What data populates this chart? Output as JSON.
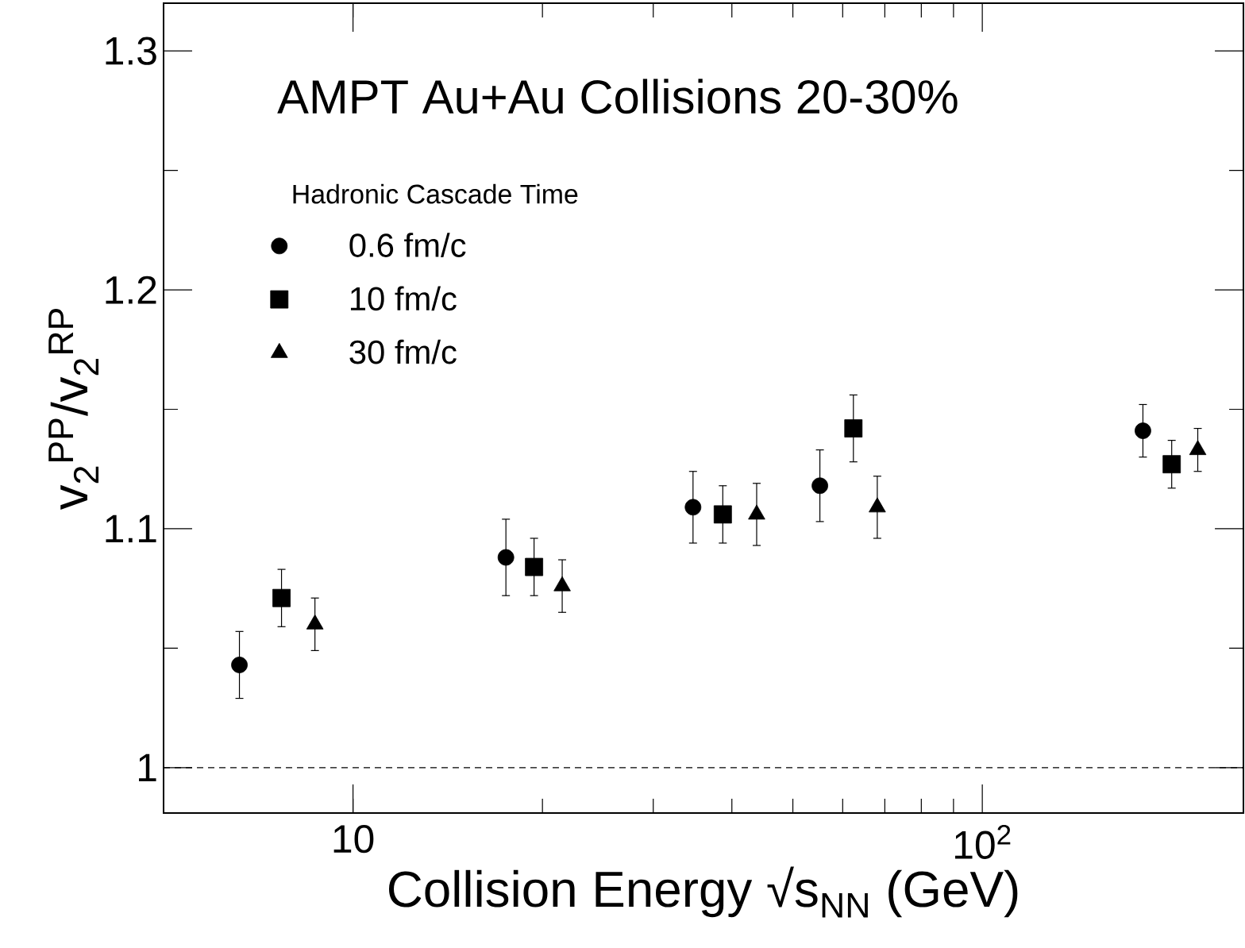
{
  "chart_data": {
    "type": "scatter",
    "title": "AMPT Au+Au Collisions 20-30%",
    "xlabel": "Collision Energy √s$_{NN}$ (GeV)",
    "ylabel": "v$_{2}$$^{PP}$/v$_{2}$$^{RP}$",
    "legend_title": "Hadronic Cascade Time",
    "legend": "top left",
    "log": "x",
    "xlim": [
      5,
      260
    ],
    "xticks": [
      10,
      {
        "value": 100,
        "label": "10$^{2}$"
      }
    ],
    "ylim": [
      0.981,
      1.32
    ],
    "yticks": [
      1,
      1.1,
      1.2,
      1.3
    ],
    "ref_lines": [
      {
        "axis": "y",
        "value": 1,
        "label": null,
        "line_style": "dashed"
      }
    ],
    "series": [
      {
        "name": "0.6 fm/c",
        "color": "#000000",
        "marker": "circle",
        "x": [
          6.6,
          17.5,
          34.7,
          55.2,
          180
        ],
        "values": [
          1.043,
          1.088,
          1.109,
          1.118,
          1.141
        ],
        "errors": [
          0.014,
          0.016,
          0.015,
          0.015,
          0.011
        ]
      },
      {
        "name": "10 fm/c",
        "color": "#000000",
        "marker": "square",
        "x": [
          7.7,
          19.4,
          38.7,
          62.4,
          200
        ],
        "values": [
          1.071,
          1.084,
          1.106,
          1.142,
          1.127
        ],
        "errors": [
          0.012,
          0.012,
          0.012,
          0.014,
          0.01
        ]
      },
      {
        "name": "30 fm/c",
        "color": "#000000",
        "marker": "triangle",
        "x": [
          8.7,
          21.5,
          43.8,
          68.1,
          220
        ],
        "values": [
          1.06,
          1.076,
          1.106,
          1.109,
          1.133
        ],
        "errors": [
          0.011,
          0.011,
          0.013,
          0.013,
          0.009
        ]
      }
    ]
  }
}
